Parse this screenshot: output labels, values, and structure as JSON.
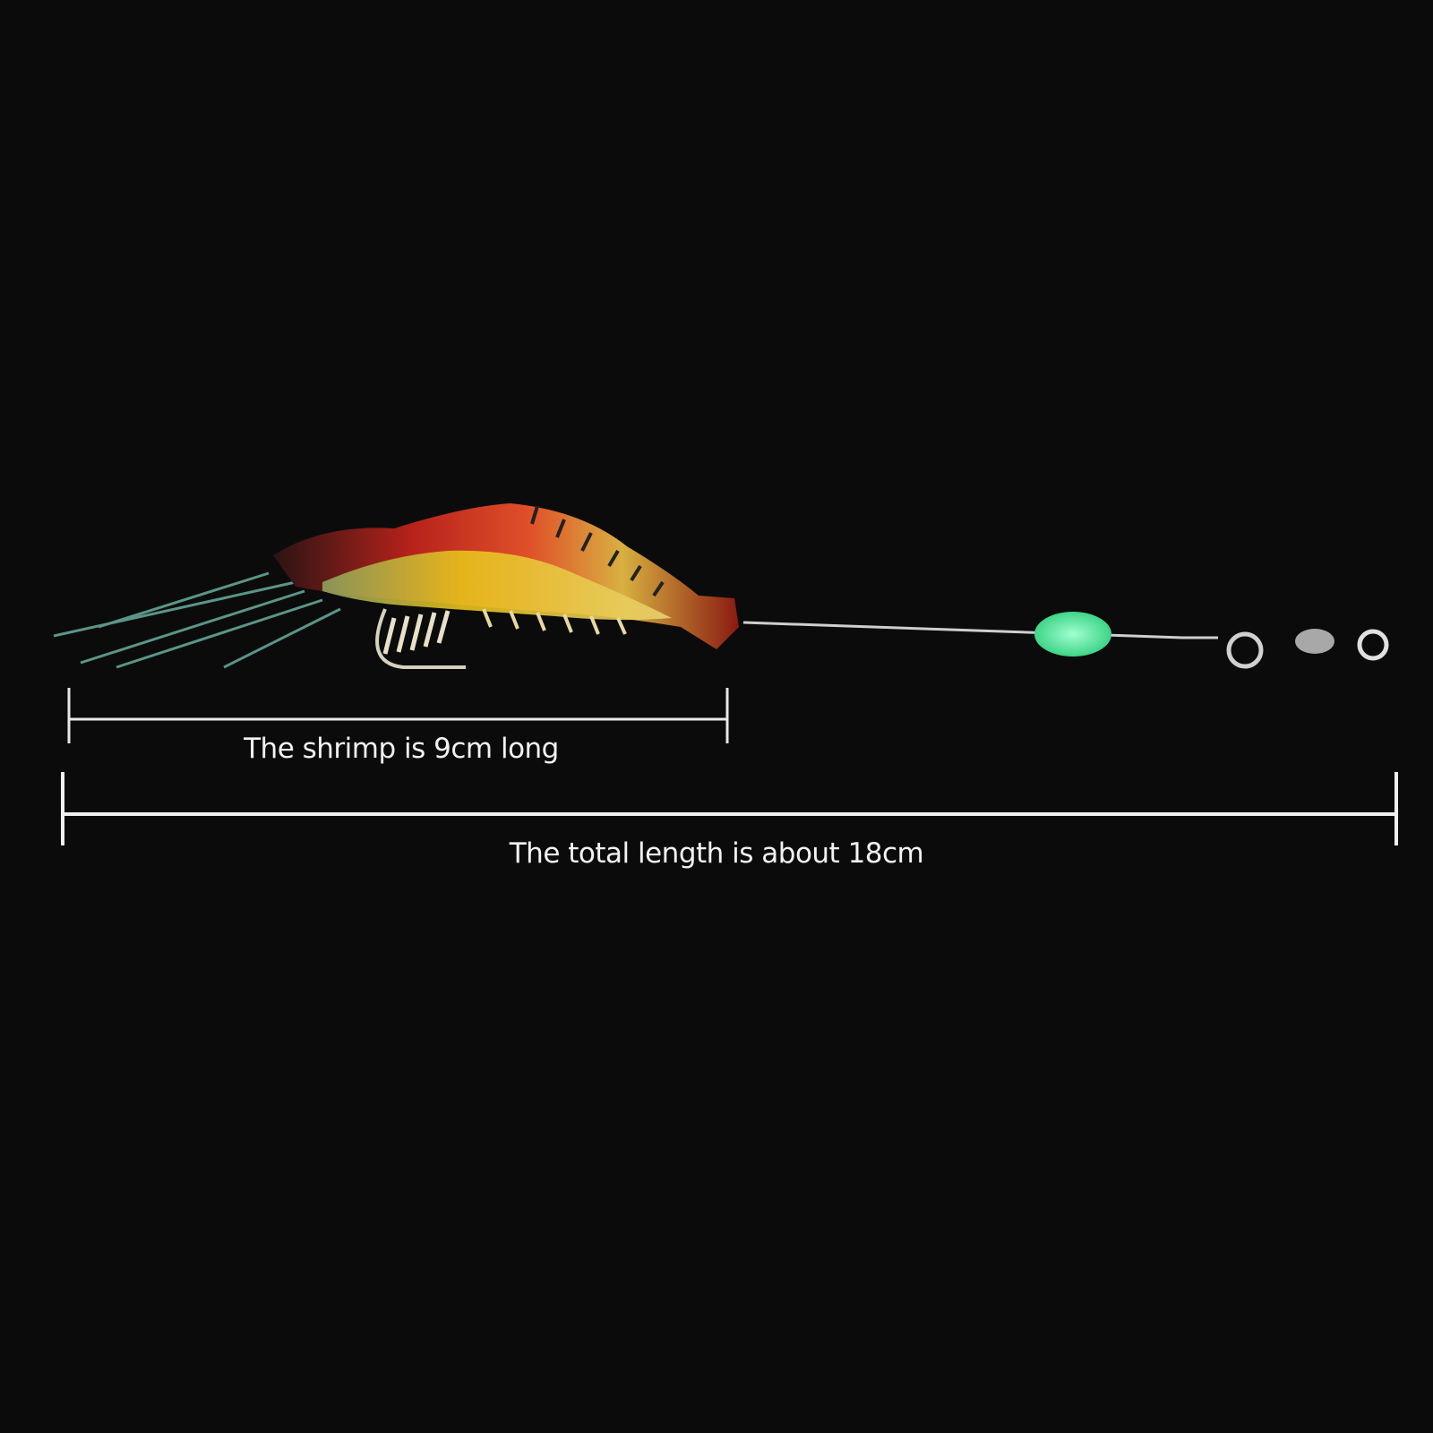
{
  "product": {
    "body_colors": {
      "head": "#2a1414",
      "back": "#c8261a",
      "belly": "#e8c21a",
      "tail": "#8a1a12",
      "bead": "#6ff0a8",
      "wire": "#cfcfcf"
    }
  },
  "measurements": {
    "shrimp_label": "The shrimp is 9cm long",
    "total_label": "The total length is about 18cm"
  }
}
